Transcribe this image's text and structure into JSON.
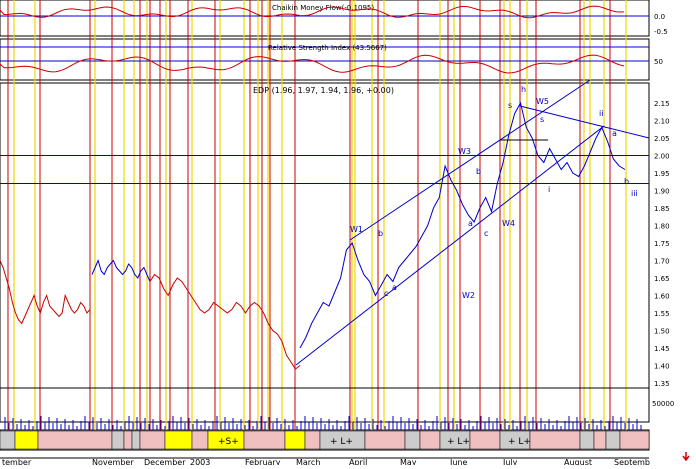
{
  "chart_data": {
    "type": "line",
    "panels": {
      "chaikin": {
        "label": "Chaikin Money Flow(-0.1095)",
        "ticks": [
          "0.0",
          "-0.5"
        ],
        "ylim": [
          -0.8,
          0.5
        ]
      },
      "rsi": {
        "label": "Relative Strength Index (43.5667)",
        "ticks": [
          "50"
        ],
        "ylim": [
          20,
          90
        ]
      },
      "price": {
        "title": "EDP (1.96, 1.97, 1.94, 1.96, +0.00)",
        "ticks": [
          "2.15",
          "2.10",
          "2.05",
          "2.00",
          "1.95",
          "1.90",
          "1.85",
          "1.80",
          "1.75",
          "1.70",
          "1.65",
          "1.60",
          "1.55",
          "1.50",
          "1.45",
          "1.40",
          "1.35"
        ],
        "ylim": [
          1.32,
          2.22
        ],
        "hlines": [
          2.0,
          1.92
        ]
      },
      "volume": {
        "ticks": [
          "50000"
        ]
      }
    },
    "x_labels": [
      "tember",
      "November",
      "December",
      "2003",
      "February",
      "March",
      "April",
      "May",
      "June",
      "July",
      "August",
      "Septemb"
    ],
    "series": [
      {
        "name": "red-price",
        "color": "#cc0000",
        "values": [
          1.7,
          1.68,
          1.65,
          1.62,
          1.58,
          1.55,
          1.53,
          1.52,
          1.54,
          1.56,
          1.58,
          1.6,
          1.57,
          1.55,
          1.58,
          1.6,
          1.57,
          1.56,
          1.55,
          1.54,
          1.55,
          1.6,
          1.58,
          1.56,
          1.55,
          1.56,
          1.58,
          1.57,
          1.55,
          1.56
        ]
      },
      {
        "name": "blue-price",
        "color": "#0000cc",
        "values": [
          1.66,
          1.68,
          1.7,
          1.67,
          1.66,
          1.68,
          1.69,
          1.7,
          1.68,
          1.67,
          1.66,
          1.67,
          1.69,
          1.68,
          1.66,
          1.65,
          1.67,
          1.68,
          1.66,
          1.64
        ]
      },
      {
        "name": "red-price-2",
        "color": "#cc0000",
        "values": [
          1.64,
          1.66,
          1.65,
          1.62,
          1.6,
          1.63,
          1.65,
          1.64,
          1.62,
          1.6,
          1.58,
          1.56,
          1.55,
          1.56,
          1.58,
          1.57,
          1.56,
          1.55,
          1.56,
          1.58,
          1.57,
          1.55,
          1.57,
          1.58,
          1.57,
          1.55,
          1.52,
          1.5,
          1.49,
          1.47,
          1.43,
          1.41,
          1.39,
          1.4
        ]
      },
      {
        "name": "blue-price-2",
        "color": "#0000cc",
        "values": [
          1.45,
          1.48,
          1.52,
          1.55,
          1.58,
          1.57,
          1.61,
          1.65,
          1.73,
          1.75,
          1.7,
          1.66,
          1.64,
          1.6,
          1.63,
          1.66,
          1.64,
          1.68,
          1.7,
          1.72,
          1.74,
          1.77,
          1.8,
          1.85,
          1.88,
          1.97,
          1.93,
          1.9,
          1.86,
          1.83,
          1.81,
          1.85,
          1.88,
          1.84,
          1.92,
          1.98,
          2.06,
          2.12,
          2.15,
          2.08,
          2.05,
          2.0,
          1.98,
          2.02,
          1.99,
          1.96,
          1.98,
          1.95,
          1.94,
          1.97,
          2.01,
          2.05,
          2.08,
          2.04,
          1.99,
          1.97,
          1.96
        ]
      }
    ],
    "wave_labels": [
      "W1",
      "b",
      "a",
      "c",
      "W2",
      "W3",
      "b",
      "a",
      "c",
      "W4",
      "s",
      "h",
      "W5",
      "s",
      "ii",
      "a",
      "i",
      "b",
      "iii"
    ]
  }
}
